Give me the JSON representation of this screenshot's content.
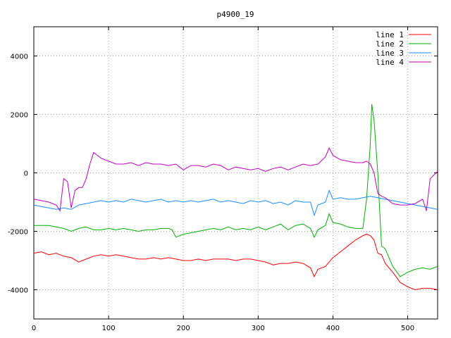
{
  "chart_data": {
    "type": "line",
    "title": "p4900_19",
    "xlabel": "",
    "ylabel": "",
    "xlim": [
      0,
      540
    ],
    "ylim": [
      -5000,
      5000
    ],
    "xticks": [
      0,
      100,
      200,
      300,
      400,
      500
    ],
    "yticks": [
      -4000,
      -2000,
      0,
      2000,
      4000
    ],
    "grid": true,
    "legend_position": "top-right",
    "series": [
      {
        "name": "line 1",
        "color": "#ff0000",
        "x": [
          0,
          10,
          20,
          30,
          40,
          50,
          60,
          70,
          80,
          90,
          100,
          110,
          120,
          130,
          140,
          150,
          160,
          170,
          180,
          190,
          200,
          210,
          220,
          230,
          240,
          250,
          260,
          270,
          280,
          290,
          300,
          310,
          320,
          330,
          340,
          350,
          360,
          370,
          375,
          380,
          390,
          395,
          400,
          410,
          420,
          430,
          440,
          445,
          450,
          455,
          460,
          465,
          470,
          480,
          490,
          500,
          510,
          520,
          530,
          540
        ],
        "y": [
          -2750,
          -2700,
          -2800,
          -2750,
          -2850,
          -2900,
          -3050,
          -2950,
          -2850,
          -2800,
          -2850,
          -2800,
          -2850,
          -2900,
          -2950,
          -2950,
          -2900,
          -2950,
          -2900,
          -2950,
          -3000,
          -3000,
          -2950,
          -3000,
          -2950,
          -2950,
          -2950,
          -3000,
          -2950,
          -2950,
          -3000,
          -3050,
          -3150,
          -3100,
          -3100,
          -3050,
          -3100,
          -3250,
          -3550,
          -3300,
          -3200,
          -3050,
          -2900,
          -2700,
          -2500,
          -2300,
          -2150,
          -2100,
          -2150,
          -2300,
          -2750,
          -2800,
          -3100,
          -3400,
          -3750,
          -3900,
          -4000,
          -3950,
          -3950,
          -4000
        ]
      },
      {
        "name": "line 2",
        "color": "#00b000",
        "x": [
          0,
          10,
          20,
          30,
          40,
          50,
          60,
          70,
          80,
          90,
          100,
          110,
          120,
          130,
          140,
          150,
          160,
          170,
          180,
          185,
          190,
          200,
          210,
          220,
          230,
          240,
          250,
          260,
          270,
          280,
          290,
          300,
          310,
          320,
          330,
          340,
          350,
          360,
          370,
          375,
          380,
          390,
          395,
          400,
          410,
          420,
          430,
          440,
          445,
          450,
          452,
          455,
          460,
          465,
          470,
          480,
          490,
          500,
          510,
          520,
          530,
          540
        ],
        "y": [
          -1800,
          -1800,
          -1800,
          -1850,
          -1900,
          -2000,
          -1900,
          -1850,
          -1950,
          -1950,
          -1900,
          -1950,
          -1900,
          -1950,
          -2000,
          -1950,
          -1950,
          -1900,
          -1900,
          -1950,
          -2200,
          -2100,
          -2050,
          -2000,
          -1950,
          -1900,
          -1950,
          -1850,
          -1950,
          -1900,
          -1950,
          -1850,
          -1950,
          -1850,
          -1750,
          -1950,
          -1800,
          -1750,
          -1900,
          -2200,
          -1950,
          -1800,
          -1400,
          -1700,
          -1750,
          -1850,
          -1900,
          -1900,
          -900,
          1000,
          2350,
          1800,
          0,
          -2500,
          -2600,
          -3200,
          -3550,
          -3400,
          -3300,
          -3250,
          -3300,
          -3200
        ]
      },
      {
        "name": "line 3",
        "color": "#1a8cff",
        "x": [
          0,
          10,
          20,
          30,
          40,
          50,
          60,
          70,
          80,
          90,
          100,
          110,
          120,
          130,
          140,
          150,
          160,
          170,
          180,
          190,
          200,
          210,
          220,
          230,
          240,
          250,
          260,
          270,
          280,
          290,
          300,
          310,
          320,
          330,
          340,
          350,
          360,
          370,
          375,
          380,
          390,
          395,
          400,
          410,
          420,
          430,
          440,
          450,
          460,
          470,
          480,
          490,
          500,
          510,
          520,
          530,
          540
        ],
        "y": [
          -1100,
          -1150,
          -1200,
          -1250,
          -1200,
          -1250,
          -1100,
          -1050,
          -1000,
          -950,
          -1000,
          -950,
          -1000,
          -900,
          -950,
          -1000,
          -950,
          -900,
          -1000,
          -950,
          -1000,
          -950,
          -1000,
          -950,
          -900,
          -1000,
          -950,
          -1000,
          -1050,
          -950,
          -1000,
          -950,
          -1050,
          -1000,
          -1100,
          -950,
          -1000,
          -1000,
          -1450,
          -1100,
          -1000,
          -600,
          -900,
          -850,
          -900,
          -900,
          -850,
          -800,
          -850,
          -900,
          -950,
          -1000,
          -1050,
          -1100,
          -1150,
          -1200,
          -1250
        ]
      },
      {
        "name": "line 4",
        "color": "#c000c0",
        "x": [
          0,
          10,
          20,
          30,
          35,
          40,
          45,
          50,
          55,
          60,
          65,
          70,
          75,
          80,
          85,
          90,
          100,
          110,
          120,
          130,
          140,
          150,
          160,
          170,
          180,
          190,
          200,
          210,
          220,
          230,
          240,
          250,
          260,
          270,
          280,
          290,
          300,
          310,
          320,
          330,
          340,
          350,
          360,
          370,
          380,
          390,
          395,
          400,
          410,
          420,
          430,
          440,
          445,
          450,
          455,
          460,
          465,
          470,
          480,
          490,
          500,
          510,
          520,
          525,
          530,
          540
        ],
        "y": [
          -900,
          -950,
          -1000,
          -1100,
          -1300,
          -200,
          -300,
          -1200,
          -600,
          -500,
          -500,
          -200,
          300,
          700,
          600,
          500,
          400,
          300,
          300,
          350,
          250,
          350,
          300,
          300,
          250,
          300,
          100,
          250,
          250,
          200,
          300,
          250,
          100,
          200,
          150,
          100,
          150,
          50,
          150,
          200,
          100,
          200,
          300,
          250,
          300,
          550,
          850,
          600,
          450,
          400,
          350,
          350,
          400,
          300,
          0,
          -700,
          -800,
          -850,
          -1050,
          -1100,
          -1100,
          -1050,
          -900,
          -1300,
          -200,
          50
        ]
      }
    ]
  }
}
